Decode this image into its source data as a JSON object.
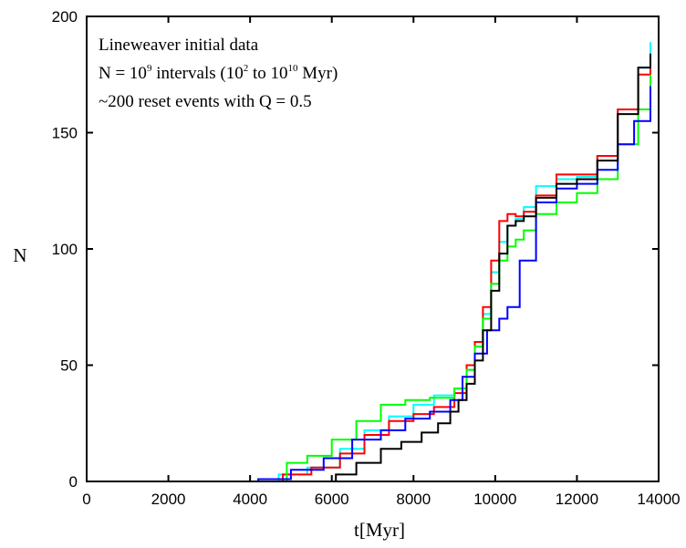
{
  "chart_data": {
    "type": "line",
    "title": "",
    "xlabel": "t[Myr]",
    "ylabel": "N",
    "xlim": [
      0,
      14000
    ],
    "ylim": [
      0,
      200
    ],
    "xticks": [
      0,
      2000,
      4000,
      6000,
      8000,
      10000,
      12000,
      14000
    ],
    "yticks": [
      0,
      50,
      100,
      150,
      200
    ],
    "xtick_labels": [
      "0",
      "2000",
      "4000",
      "6000",
      "8000",
      "10000",
      "12000",
      "14000"
    ],
    "ytick_labels": [
      "0",
      "50",
      "100",
      "150",
      "200"
    ],
    "grid": false,
    "legend": "none",
    "annotations": {
      "line1": "Lineweaver initial data",
      "line2_pre": "N = 10",
      "line2_sup1": "9",
      "line2_mid": " intervals (10",
      "line2_sup2": "2",
      "line2_mid2": " to 10",
      "line2_sup3": "10",
      "line2_post": " Myr)",
      "line3": "~200 reset events with Q = 0.5"
    },
    "series": [
      {
        "color": "#00ffff",
        "x": [
          4100,
          4700,
          5400,
          6200,
          6800,
          7400,
          8000,
          8500,
          9000,
          9300,
          9500,
          9700,
          9900,
          10100,
          10300,
          10500,
          10700,
          11000,
          11500,
          12000,
          12500,
          13000,
          13500,
          13800
        ],
        "y": [
          0,
          3,
          6,
          14,
          22,
          28,
          33,
          37,
          40,
          48,
          58,
          72,
          90,
          103,
          110,
          113,
          118,
          127,
          130,
          131,
          140,
          160,
          178,
          189
        ]
      },
      {
        "color": "#ff0000",
        "x": [
          4000,
          4800,
          5500,
          6200,
          6800,
          7400,
          8000,
          8500,
          9000,
          9300,
          9500,
          9700,
          9900,
          10100,
          10300,
          10500,
          10700,
          11000,
          11500,
          12000,
          12500,
          13000,
          13500,
          13800
        ],
        "y": [
          0,
          3,
          6,
          12,
          20,
          26,
          29,
          32,
          38,
          50,
          60,
          75,
          95,
          112,
          115,
          114,
          116,
          123,
          132,
          132,
          140,
          160,
          175,
          181
        ]
      },
      {
        "color": "#00ff00",
        "x": [
          4500,
          4900,
          5400,
          6000,
          6600,
          7200,
          7800,
          8400,
          9000,
          9300,
          9500,
          9700,
          9900,
          10100,
          10300,
          10500,
          10700,
          11000,
          11500,
          12000,
          12500,
          13000,
          13500,
          13800
        ],
        "y": [
          0,
          8,
          11,
          18,
          26,
          33,
          35,
          36,
          40,
          48,
          58,
          70,
          85,
          95,
          101,
          104,
          108,
          115,
          120,
          124,
          130,
          145,
          160,
          175
        ]
      },
      {
        "color": "#0000ff",
        "x": [
          3600,
          4200,
          5000,
          5800,
          6500,
          7200,
          7800,
          8400,
          8900,
          9200,
          9500,
          9800,
          10100,
          10300,
          10600,
          11000,
          11500,
          12000,
          12500,
          13000,
          13400,
          13800
        ],
        "y": [
          0,
          1,
          5,
          10,
          18,
          22,
          27,
          30,
          35,
          45,
          55,
          65,
          70,
          75,
          95,
          120,
          126,
          128,
          134,
          145,
          155,
          170
        ]
      },
      {
        "color": "#000000",
        "x": [
          5600,
          6100,
          6600,
          7200,
          7700,
          8200,
          8600,
          8900,
          9100,
          9300,
          9500,
          9700,
          9900,
          10100,
          10300,
          10500,
          10700,
          11000,
          11500,
          12000,
          12500,
          13000,
          13500,
          13800
        ],
        "y": [
          0,
          3,
          8,
          14,
          17,
          21,
          25,
          30,
          35,
          42,
          52,
          65,
          82,
          98,
          110,
          112,
          114,
          122,
          128,
          130,
          138,
          158,
          178,
          184
        ]
      }
    ]
  }
}
